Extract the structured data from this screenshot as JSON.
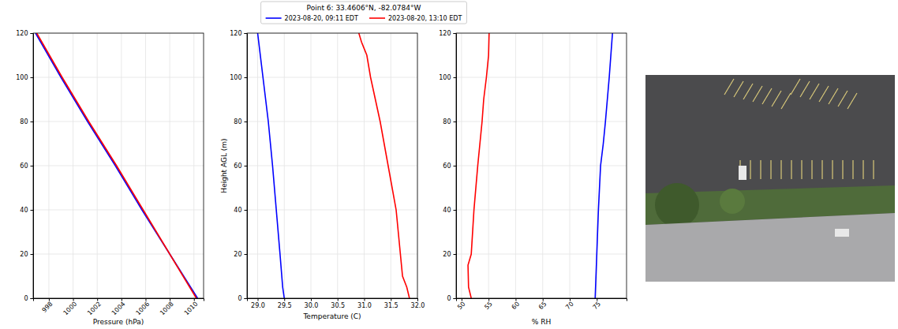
{
  "chart_data": [
    {
      "type": "line",
      "xlabel": "Pressure (hPa)",
      "xlim": [
        996.7,
        1010.8
      ],
      "xticks": [
        998,
        1000,
        1002,
        1004,
        1006,
        1008,
        1010
      ],
      "ylim": [
        0,
        120
      ],
      "yticks": [
        0,
        20,
        40,
        60,
        80,
        100,
        120
      ],
      "grid": true,
      "series": [
        {
          "color": "#0000ff",
          "x": [
            1010.3,
            1008.0,
            1005.7,
            1003.5,
            1001.2,
            999.0,
            996.9
          ],
          "values": [
            0,
            20,
            40,
            60,
            80,
            100,
            120
          ]
        },
        {
          "color": "#ff0000",
          "x": [
            1010.2,
            1008.0,
            1005.8,
            1003.6,
            1001.3,
            999.1,
            997.0
          ],
          "values": [
            0,
            20,
            40,
            60,
            80,
            100,
            120
          ]
        }
      ]
    },
    {
      "type": "line",
      "title": "Point 6: 33.4606°N, -82.0784°W",
      "legend": "top",
      "xlabel": "Temperature (C)",
      "ylabel": "Height AGL (m)",
      "xlim": [
        28.8,
        32.0
      ],
      "xticks": [
        {
          "value": 29.0,
          "label": "29.0"
        },
        {
          "value": 29.5,
          "label": "29.5"
        },
        {
          "value": 30.0,
          "label": "30.0"
        },
        {
          "value": 30.5,
          "label": "30.5"
        },
        {
          "value": 31.0,
          "label": "31.0"
        },
        {
          "value": 31.5,
          "label": "31.5"
        },
        {
          "value": 32.0,
          "label": "32.0"
        }
      ],
      "ylim": [
        0,
        120
      ],
      "yticks": [
        0,
        20,
        40,
        60,
        80,
        100,
        120
      ],
      "grid": true,
      "series": [
        {
          "name": "2023-08-20, 09:11 EDT",
          "color": "#0000ff",
          "x": [
            29.5,
            29.47,
            29.42,
            29.35,
            29.28,
            29.2,
            29.1,
            29.0
          ],
          "values": [
            0,
            5,
            20,
            40,
            60,
            80,
            100,
            120
          ]
        },
        {
          "name": "2023-08-20, 13:10 EDT",
          "color": "#ff0000",
          "x": [
            31.85,
            31.8,
            31.72,
            31.68,
            31.6,
            31.45,
            31.3,
            31.12,
            31.05,
            31.0,
            30.95,
            30.9
          ],
          "values": [
            0,
            5,
            10,
            20,
            40,
            60,
            80,
            100,
            110,
            113,
            116,
            120
          ]
        }
      ]
    },
    {
      "type": "line",
      "xlabel": "% RH",
      "xlim": [
        49.0,
        80.5
      ],
      "xticks": [
        50,
        55,
        60,
        65,
        70,
        75
      ],
      "ylim": [
        0,
        120
      ],
      "yticks": [
        0,
        20,
        40,
        60,
        80,
        100,
        120
      ],
      "grid": true,
      "series": [
        {
          "color": "#0000ff",
          "x": [
            74.7,
            75.0,
            75.3,
            75.7,
            76.2,
            76.6,
            77.3,
            77.9
          ],
          "values": [
            0,
            20,
            40,
            60,
            70,
            80,
            100,
            120
          ]
        },
        {
          "color": "#ff0000",
          "x": [
            51.8,
            51.3,
            51.2,
            51.8,
            52.3,
            53.0,
            53.8,
            54.1,
            54.6,
            55.0,
            55.1
          ],
          "values": [
            0,
            5,
            15,
            20,
            40,
            60,
            80,
            90,
            100,
            110,
            120
          ]
        }
      ]
    }
  ]
}
